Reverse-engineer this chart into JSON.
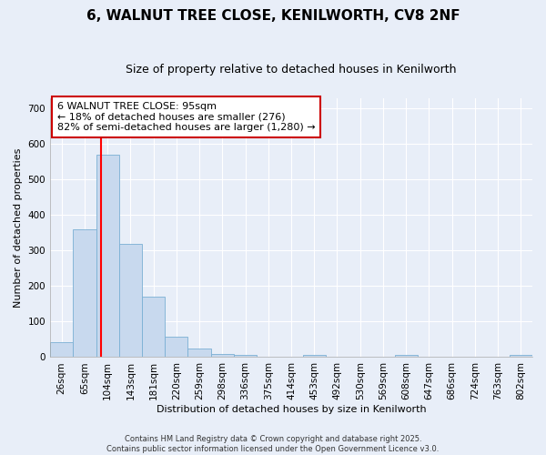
{
  "title1": "6, WALNUT TREE CLOSE, KENILWORTH, CV8 2NF",
  "title2": "Size of property relative to detached houses in Kenilworth",
  "xlabel": "Distribution of detached houses by size in Kenilworth",
  "ylabel": "Number of detached properties",
  "bin_labels": [
    "26sqm",
    "65sqm",
    "104sqm",
    "143sqm",
    "181sqm",
    "220sqm",
    "259sqm",
    "298sqm",
    "336sqm",
    "375sqm",
    "414sqm",
    "453sqm",
    "492sqm",
    "530sqm",
    "569sqm",
    "608sqm",
    "647sqm",
    "686sqm",
    "724sqm",
    "763sqm",
    "802sqm"
  ],
  "bar_values": [
    42,
    360,
    570,
    320,
    170,
    57,
    25,
    10,
    6,
    0,
    0,
    6,
    0,
    0,
    0,
    6,
    0,
    0,
    0,
    0,
    6
  ],
  "bar_color": "#c8d9ee",
  "bar_edge_color": "#7aafd4",
  "red_line_x": 1.72,
  "ylim": [
    0,
    730
  ],
  "yticks": [
    0,
    100,
    200,
    300,
    400,
    500,
    600,
    700
  ],
  "annotation_lines": [
    "6 WALNUT TREE CLOSE: 95sqm",
    "← 18% of detached houses are smaller (276)",
    "82% of semi-detached houses are larger (1,280) →"
  ],
  "annotation_box_color": "#ffffff",
  "annotation_box_edge": "#cc0000",
  "background_color": "#e8eef8",
  "grid_color": "#ffffff",
  "footer1": "Contains HM Land Registry data © Crown copyright and database right 2025.",
  "footer2": "Contains public sector information licensed under the Open Government Licence v3.0.",
  "title1_fontsize": 11,
  "title2_fontsize": 9,
  "axis_label_fontsize": 8,
  "tick_fontsize": 7.5,
  "annotation_fontsize": 8,
  "footer_fontsize": 6
}
